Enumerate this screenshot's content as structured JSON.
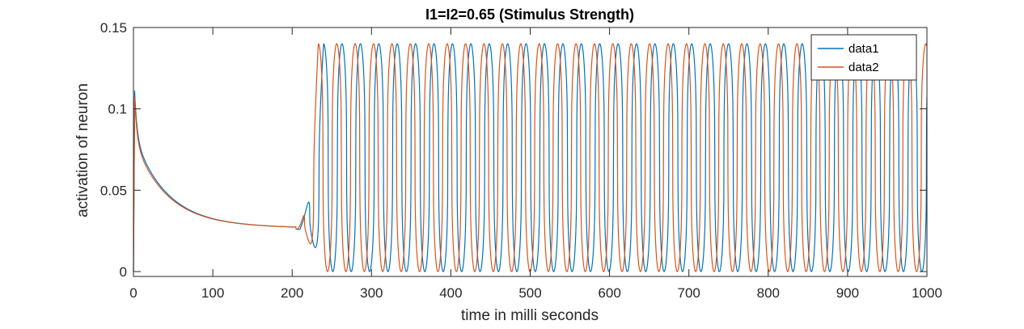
{
  "chart_data": {
    "type": "line",
    "title": "I1=I2=0.65 (Stimulus Strength)",
    "xlabel": "time in milli seconds",
    "ylabel": "activation of neuron",
    "xlim": [
      0,
      1000
    ],
    "ylim": [
      -0.003,
      0.15
    ],
    "xticks": [
      0,
      100,
      200,
      300,
      400,
      500,
      600,
      700,
      800,
      900,
      1000
    ],
    "xtick_labels": [
      "0",
      "100",
      "200",
      "300",
      "400",
      "500",
      "600",
      "700",
      "800",
      "900",
      "1000"
    ],
    "yticks": [
      0,
      0.05,
      0.1,
      0.15
    ],
    "ytick_labels": [
      "0",
      "0.05",
      "0.1",
      "0.15"
    ],
    "grid": false,
    "legend_position": "top-right",
    "series": [
      {
        "name": "data1",
        "color": "#0072BD",
        "transient_peak": 0.107,
        "plateau_value": 0.026,
        "oscillation_onset_ms": 205,
        "first_trough_ms": 228,
        "period_ms": 23.2,
        "max": 0.14,
        "min": 0.0
      },
      {
        "name": "data2",
        "color": "#D95319",
        "transient_peak": 0.103,
        "plateau_value": 0.026,
        "oscillation_onset_ms": 205,
        "first_peak_ms": 233,
        "period_ms": 23.2,
        "max": 0.14,
        "min": 0.0
      }
    ]
  }
}
